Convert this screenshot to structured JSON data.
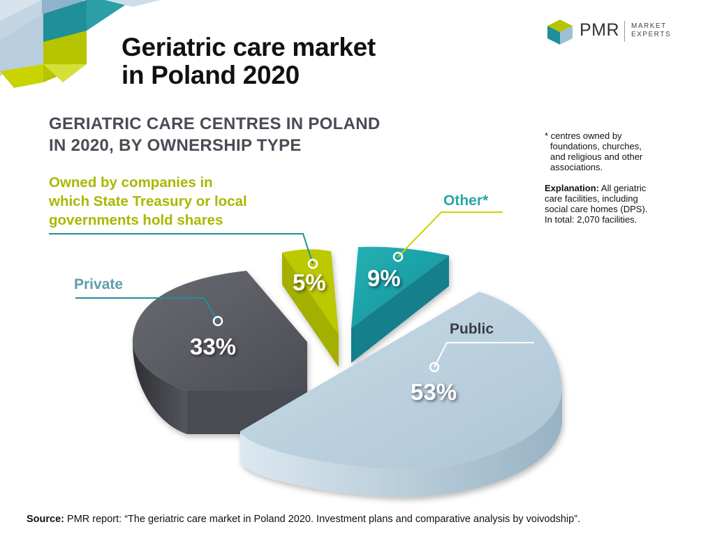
{
  "title": {
    "line1": "Geriatric care market",
    "line2": "in Poland 2020"
  },
  "logo": {
    "name": "PMR",
    "tag_line1": "MARKET",
    "tag_line2": "EXPERTS"
  },
  "subtitle": {
    "line1": "GERIATRIC CARE CENTRES IN POLAND",
    "line2": "IN 2020, BY OWNERSHIP TYPE"
  },
  "footnote": {
    "line1": "* centres owned by",
    "line2": "foundations, churches,",
    "line3": "and religious and other",
    "line4": "associations."
  },
  "explanation": {
    "label": "Explanation:",
    "line1": " All geriatric",
    "line2": "care facilities, including",
    "line3": "social care homes (DPS).",
    "line4": "In total: 2,070 facilities."
  },
  "source": {
    "label": "Source:",
    "text": " PMR report: “The geriatric care market in Poland 2020. Investment plans and comparative analysis by voivodship”."
  },
  "chart_data": {
    "type": "pie",
    "title": "GERIATRIC CARE CENTRES IN POLAND IN 2020, BY OWNERSHIP TYPE",
    "slices": [
      {
        "label": "Public",
        "value": 53,
        "value_label": "53%",
        "color": "#b9cfdd"
      },
      {
        "label": "Private",
        "value": 33,
        "value_label": "33%",
        "color": "#5b5c63"
      },
      {
        "label": "Owned by companies in which State Treasury or local governments hold shares",
        "value_label": "5%",
        "value": 5,
        "color": "#b7c400"
      },
      {
        "label": "Other*",
        "value": 9,
        "value_label": "9%",
        "color": "#1fa7ab"
      }
    ],
    "labels": {
      "owned_line1": "Owned by companies in",
      "owned_line2": "which State Treasury or local",
      "owned_line3": "governments hold shares",
      "other": "Other*",
      "private": "Private",
      "public": "Public"
    },
    "colors": {
      "public_side": "#9fb9c9",
      "private_side": "#3e3f45",
      "owned_side": "#9aa600",
      "other_side": "#147f8c",
      "leader_teal": "#1f8f99",
      "leader_yellow": "#c8d400"
    }
  }
}
